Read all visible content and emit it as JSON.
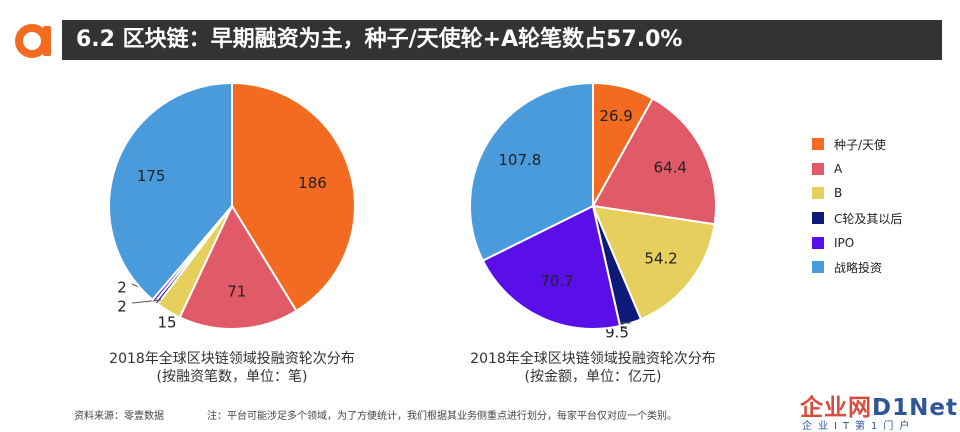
{
  "header": {
    "title": "6.2 区块链：早期融资为主，种子/天使轮+A轮笔数占57.0%"
  },
  "legend": {
    "items": [
      {
        "label": "种子/天使",
        "color": "#f26b21"
      },
      {
        "label": "A",
        "color": "#e05a68"
      },
      {
        "label": "B",
        "color": "#e6cf5c"
      },
      {
        "label": "C轮及其以后",
        "color": "#0d1a7a"
      },
      {
        "label": "IPO",
        "color": "#5a0fe8"
      },
      {
        "label": "战略投资",
        "color": "#4a9bdc"
      }
    ]
  },
  "chart_data": [
    {
      "type": "pie",
      "title": "2018年全球区块链领域投融资轮次分布",
      "subtitle": "(按融资笔数，单位：笔)",
      "categories": [
        "种子/天使",
        "A",
        "B",
        "C轮及其以后",
        "IPO",
        "战略投资"
      ],
      "values": [
        186,
        71,
        15,
        2,
        2,
        175
      ],
      "labels": [
        "186",
        "71",
        "15",
        "2",
        "2",
        "175"
      ]
    },
    {
      "type": "pie",
      "title": "2018年全球区块链领域投融资轮次分布",
      "subtitle": "(按金额，单位：亿元)",
      "categories": [
        "种子/天使",
        "A",
        "B",
        "C轮及其以后",
        "IPO",
        "战略投资"
      ],
      "values": [
        26.9,
        64.4,
        54.2,
        9.5,
        70.7,
        107.8
      ],
      "labels": [
        "26.9",
        "64.4",
        "54.2",
        "9.5",
        "70.7",
        "107.8"
      ]
    }
  ],
  "footer": {
    "source": "资料来源：零壹数据",
    "note": "注：平台可能涉足多个领域，为了方便统计，我们根据其业务侧重点进行划分，每家平台仅对应一个类别。"
  },
  "watermark": {
    "brand_a": "企业网",
    "brand_b": "D1Net",
    "sub": "企业IT第1门户"
  }
}
